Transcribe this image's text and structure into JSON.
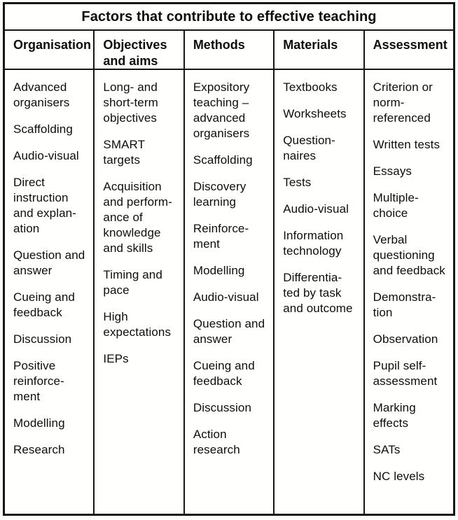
{
  "title": "Factors that contribute to effective teaching",
  "columns": [
    {
      "id": "organisation",
      "header": "Organisation",
      "items": [
        "Advanced\norganisers",
        "Scaffolding",
        "Audio-visual",
        "Direct\ninstruction\nand explan-\nation",
        "Question and\nanswer",
        "Cueing and\nfeedback",
        "Discussion",
        "Positive\nreinforce-\nment",
        "Modelling",
        "Research"
      ]
    },
    {
      "id": "objectives-and-aims",
      "header": "Objectives\nand aims",
      "items": [
        "Long- and\nshort-term\nobjectives",
        "SMART\ntargets",
        "Acquisition\nand perform-\nance of\nknowledge\nand skills",
        "Timing and\npace",
        "High\nexpectations",
        "IEPs"
      ]
    },
    {
      "id": "methods",
      "header": "Methods",
      "items": [
        "Expository\nteaching –\nadvanced\norganisers",
        "Scaffolding",
        "Discovery\nlearning",
        "Reinforce-\nment",
        "Modelling",
        "Audio-visual",
        "Question and\nanswer",
        "Cueing and\nfeedback",
        "Discussion",
        "Action\nresearch"
      ]
    },
    {
      "id": "materials",
      "header": "Materials",
      "items": [
        "Textbooks",
        "Worksheets",
        "Question-\nnaires",
        "Tests",
        "Audio-visual",
        "Information\ntechnology",
        "Differentia-\nted by task\nand outcome"
      ]
    },
    {
      "id": "assessment",
      "header": "Assessment",
      "items": [
        "Criterion or\nnorm-\nreferenced",
        "Written tests",
        "Essays",
        "Multiple-\nchoice",
        "Verbal\nquestioning\nand feedback",
        "Demonstra-\ntion",
        "Observation",
        "Pupil self-\nassessment",
        "Marking\neffects",
        "SATs",
        "NC levels"
      ]
    }
  ]
}
